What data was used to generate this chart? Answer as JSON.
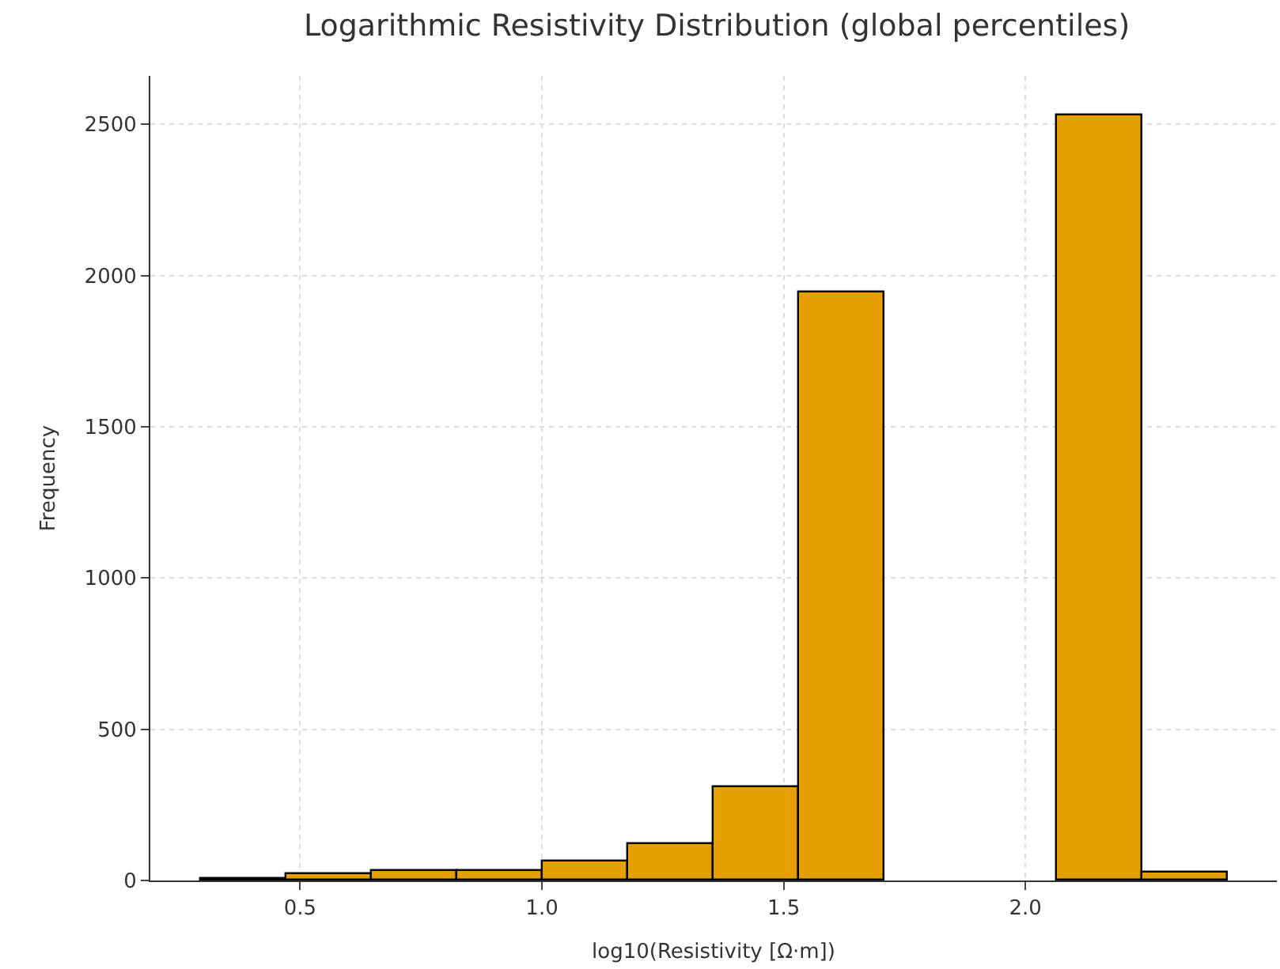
{
  "chart_data": {
    "type": "histogram",
    "title": "Logarithmic Resistivity Distribution (global percentiles)",
    "xlabel": "log10(Resistivity [Ω·m])",
    "ylabel": "Frequency",
    "bins": [
      0.294,
      0.471,
      0.648,
      0.825,
      1.002,
      1.179,
      1.356,
      1.533,
      1.71,
      1.887,
      2.064,
      2.241,
      2.418
    ],
    "values": [
      5,
      19,
      31,
      33,
      64,
      121,
      308,
      1945,
      0,
      0,
      2530,
      25
    ],
    "color": "#e69f00",
    "xlim": [
      0.19,
      2.52
    ],
    "xticks": [
      {
        "value": 0.5,
        "label": "0.5"
      },
      {
        "value": 1.0,
        "label": "1.0"
      },
      {
        "value": 1.5,
        "label": "1.5"
      },
      {
        "value": 2.0,
        "label": "2.0"
      }
    ],
    "ylim": [
      0,
      2660
    ],
    "yticks": [
      0,
      500,
      1000,
      1500,
      2000,
      2500
    ],
    "grid": true
  }
}
